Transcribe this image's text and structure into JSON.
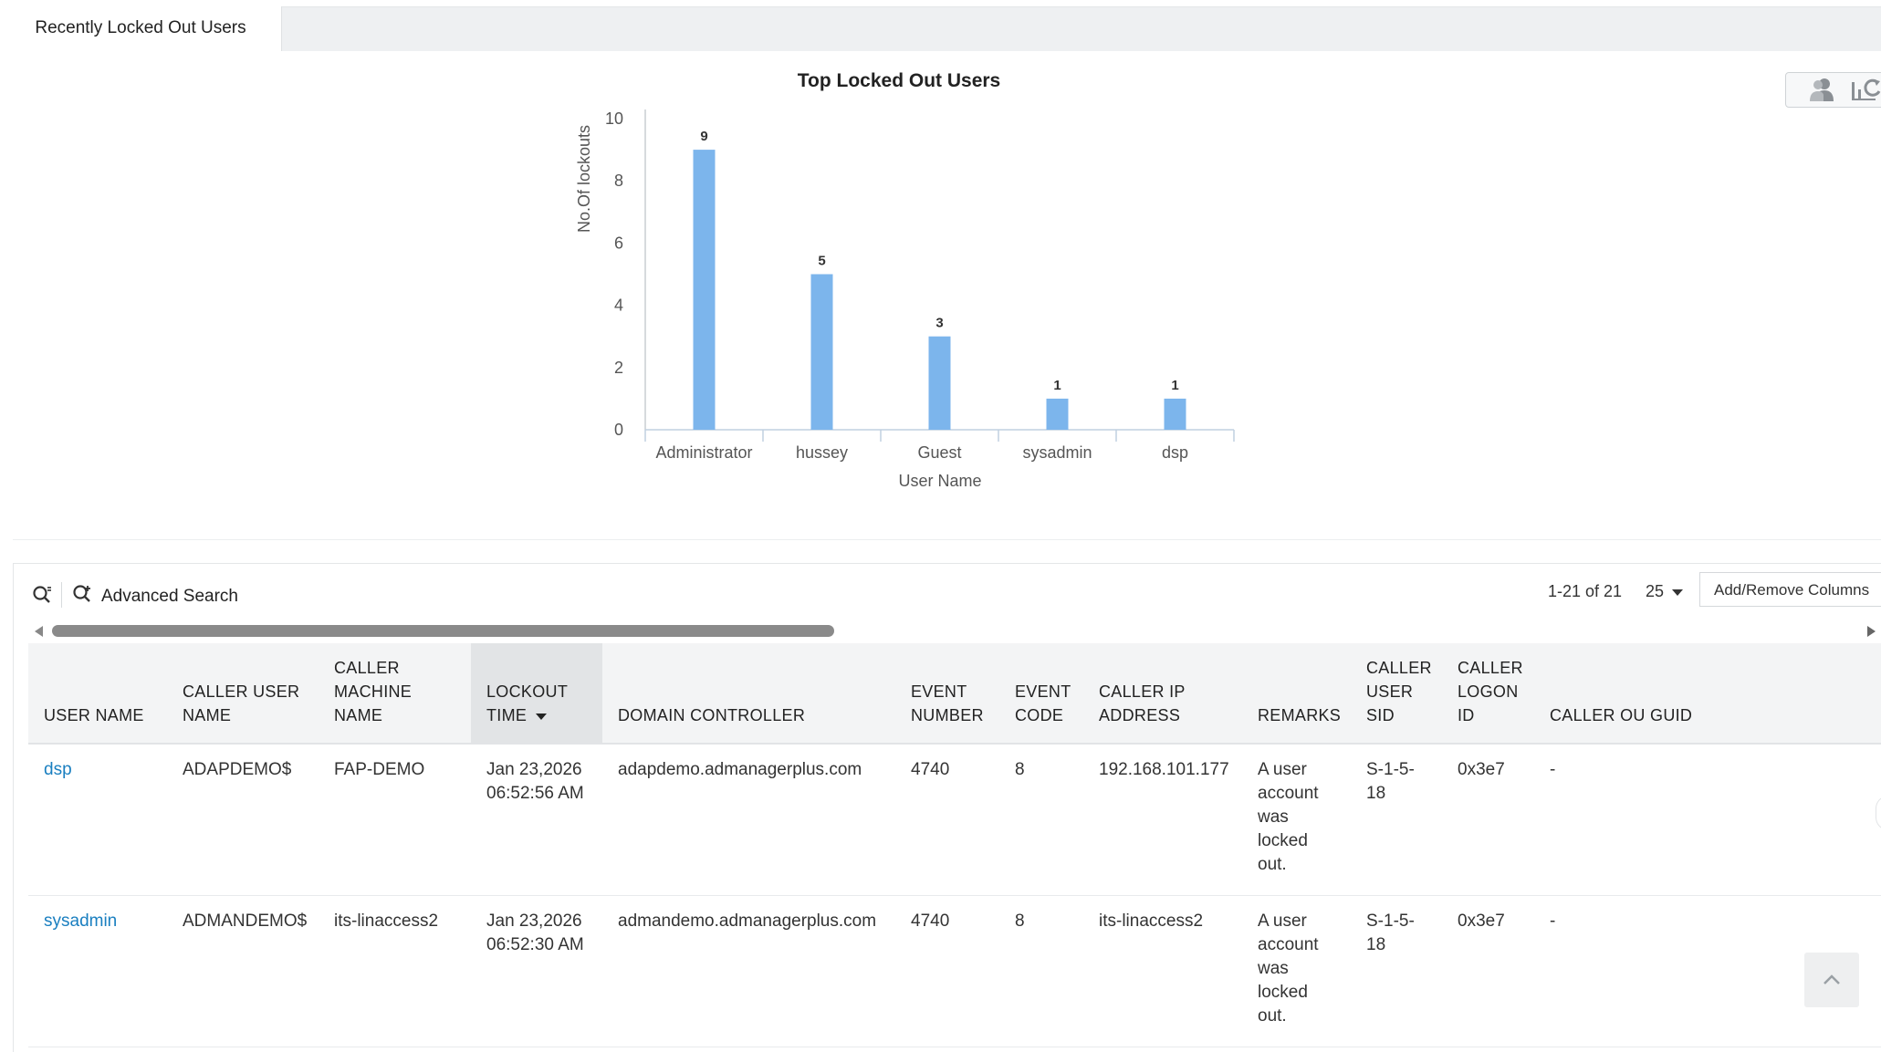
{
  "tabs": [
    {
      "label": "Recently Locked Out Users"
    }
  ],
  "toolbar_icons": [
    "users-group-icon",
    "chart-refresh-icon"
  ],
  "chart_data": {
    "type": "bar",
    "title": "Top Locked Out Users",
    "xlabel": "User Name",
    "ylabel": "No.Of lockouts",
    "categories": [
      "Administrator",
      "hussey",
      "Guest",
      "sysadmin",
      "dsp"
    ],
    "values": [
      9,
      5,
      3,
      1,
      1
    ],
    "ylim": [
      0,
      10
    ],
    "yticks": [
      "0",
      "2",
      "4",
      "6",
      "8",
      "10"
    ],
    "bar_color": "#7cb5ec",
    "grid": false,
    "legend": "none"
  },
  "grid_toolbar": {
    "advanced_search_label": "Advanced Search",
    "pager_text": "1-21 of 21",
    "per_page": "25",
    "add_remove_label": "Add/Remove Columns"
  },
  "table": {
    "columns": [
      {
        "label": "USER NAME"
      },
      {
        "label": "CALLER USER NAME"
      },
      {
        "label": "CALLER MACHINE NAME"
      },
      {
        "label": "LOCKOUT TIME"
      },
      {
        "label": "DOMAIN CONTROLLER"
      },
      {
        "label": "EVENT NUMBER"
      },
      {
        "label": "EVENT CODE"
      },
      {
        "label": "CALLER IP ADDRESS"
      },
      {
        "label": "REMARKS"
      },
      {
        "label": "CALLER USER SID"
      },
      {
        "label": "CALLER LOGON ID"
      },
      {
        "label": "CALLER OU GUID"
      }
    ],
    "rows": [
      {
        "user_name": "dsp",
        "caller_user_name": "ADAPDEMO$",
        "caller_machine_name": "FAP-DEMO",
        "lockout_time": "Jan 23,2026 06:52:56 AM",
        "domain_controller": "adapdemo.admanagerplus.com",
        "event_number": "4740",
        "event_code": "8",
        "caller_ip": "192.168.101.177",
        "remarks": "A user account was locked out.",
        "caller_sid": "S-1-5-18",
        "caller_logon_id": "0x3e7",
        "caller_ou_guid": "-"
      },
      {
        "user_name": "sysadmin",
        "caller_user_name": "ADMANDEMO$",
        "caller_machine_name": "its-linaccess2",
        "lockout_time": "Jan 23,2026 06:52:30 AM",
        "domain_controller": "admandemo.admanagerplus.com",
        "event_number": "4740",
        "event_code": "8",
        "caller_ip": "its-linaccess2",
        "remarks": "A user account was locked out.",
        "caller_sid": "S-1-5-18",
        "caller_logon_id": "0x3e7",
        "caller_ou_guid": "-"
      }
    ]
  }
}
